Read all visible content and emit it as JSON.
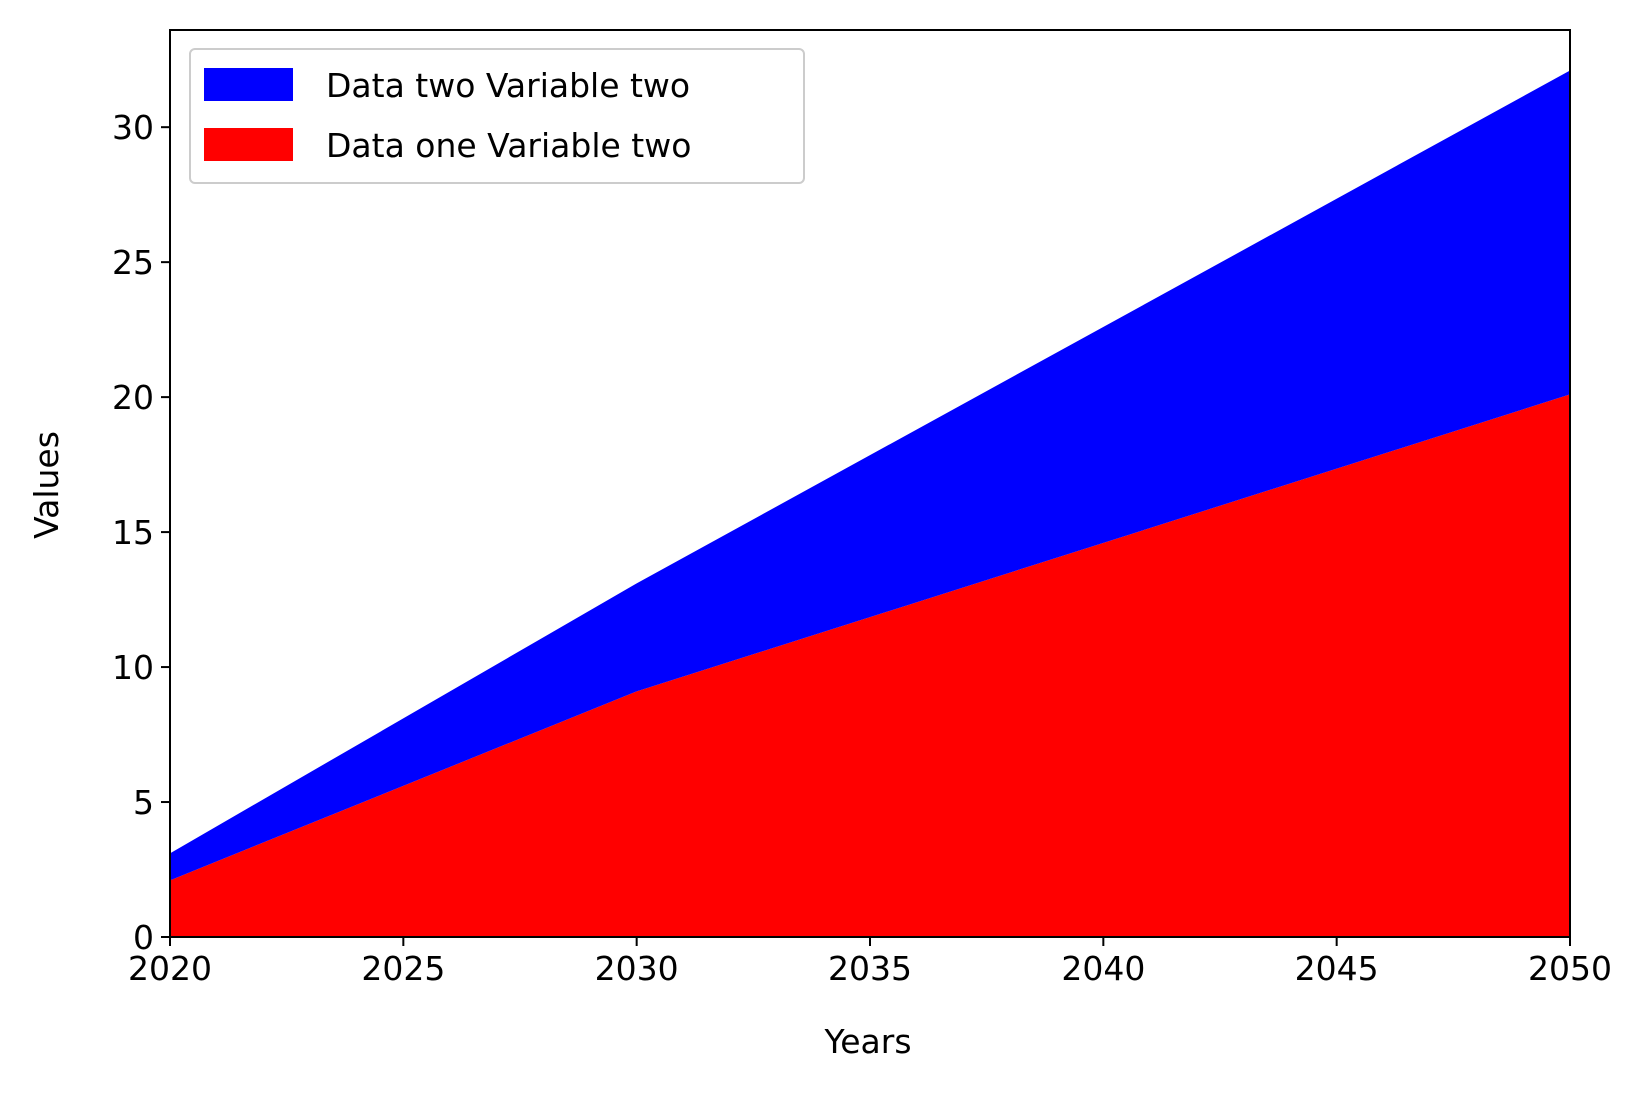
{
  "chart_data": {
    "type": "area",
    "stacked": true,
    "title": "",
    "xlabel": "Years",
    "ylabel": "Values",
    "x": [
      2020,
      2030,
      2050
    ],
    "xlim": [
      2020,
      2050
    ],
    "ylim": [
      0,
      33.6
    ],
    "xticks": [
      "2020",
      "2025",
      "2030",
      "2035",
      "2040",
      "2045",
      "2050"
    ],
    "yticks": [
      "0",
      "5",
      "10",
      "15",
      "20",
      "25",
      "30"
    ],
    "grid": false,
    "legend_position": "top-left",
    "series": [
      {
        "name": "Data one Variable two",
        "values": [
          2.1,
          9.1,
          20.1
        ],
        "color": "#ff0000"
      },
      {
        "name": "Data two Variable two",
        "values": [
          1.0,
          4.0,
          12.0
        ],
        "color": "#0000ff"
      }
    ],
    "legend_order": [
      "Data two Variable two",
      "Data one Variable two"
    ]
  }
}
